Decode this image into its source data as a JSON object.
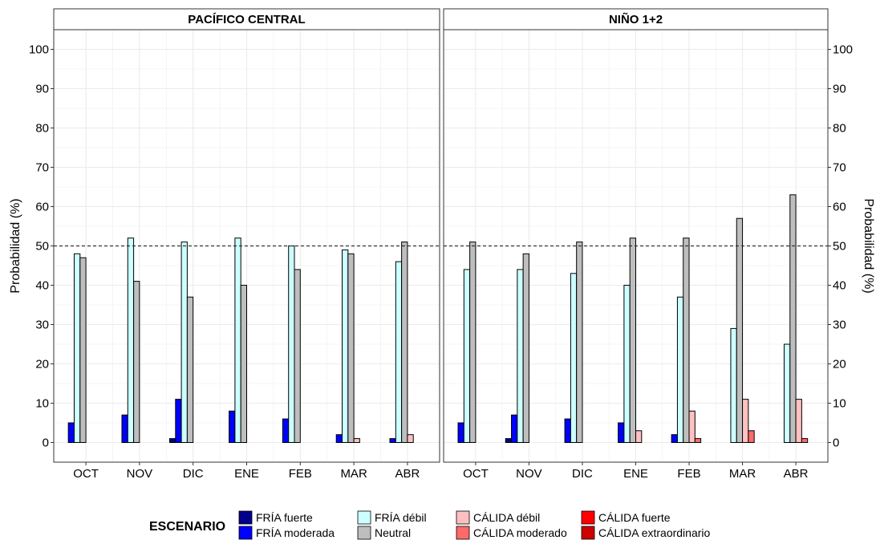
{
  "chart_data": {
    "type": "bar",
    "ylabel": "Probabilidad (%)",
    "ylim": [
      -5,
      105
    ],
    "yticks": [
      0,
      10,
      20,
      30,
      40,
      50,
      60,
      70,
      80,
      90,
      100
    ],
    "reference_line": 50,
    "categories": [
      "OCT",
      "NOV",
      "DIC",
      "ENE",
      "FEB",
      "MAR",
      "ABR"
    ],
    "legend": {
      "title": "ESCENARIO",
      "placement": "bottom"
    },
    "series_meta": [
      {
        "name": "FRÍA fuerte",
        "color": "#00008B"
      },
      {
        "name": "FRÍA moderada",
        "color": "#0000FF"
      },
      {
        "name": "FRÍA débil",
        "color": "#CCFFFF"
      },
      {
        "name": "Neutral",
        "color": "#BEBEBE"
      },
      {
        "name": "CÁLIDA débil",
        "color": "#FFC0C0"
      },
      {
        "name": "CÁLIDA moderado",
        "color": "#FF6A6A"
      },
      {
        "name": "CÁLIDA fuerte",
        "color": "#FF0000"
      },
      {
        "name": "CÁLIDA extraordinario",
        "color": "#CC0000"
      }
    ],
    "panels": [
      {
        "title": "PACÍFICO CENTRAL",
        "series": [
          {
            "name": "FRÍA fuerte",
            "values": [
              0,
              0,
              1,
              0,
              0,
              0,
              0
            ]
          },
          {
            "name": "FRÍA moderada",
            "values": [
              5,
              7,
              11,
              8,
              6,
              2,
              1
            ]
          },
          {
            "name": "FRÍA débil",
            "values": [
              48,
              52,
              51,
              52,
              50,
              49,
              46
            ]
          },
          {
            "name": "Neutral",
            "values": [
              47,
              41,
              37,
              40,
              44,
              48,
              51
            ]
          },
          {
            "name": "CÁLIDA débil",
            "values": [
              0,
              0,
              0,
              0,
              0,
              1,
              2
            ]
          },
          {
            "name": "CÁLIDA moderado",
            "values": [
              0,
              0,
              0,
              0,
              0,
              0,
              0
            ]
          },
          {
            "name": "CÁLIDA fuerte",
            "values": [
              0,
              0,
              0,
              0,
              0,
              0,
              0
            ]
          },
          {
            "name": "CÁLIDA extraordinario",
            "values": [
              0,
              0,
              0,
              0,
              0,
              0,
              0
            ]
          }
        ]
      },
      {
        "title": "NIÑO 1+2",
        "series": [
          {
            "name": "FRÍA fuerte",
            "values": [
              0,
              1,
              0,
              0,
              0,
              0,
              0
            ]
          },
          {
            "name": "FRÍA moderada",
            "values": [
              5,
              7,
              6,
              5,
              2,
              0,
              0
            ]
          },
          {
            "name": "FRÍA débil",
            "values": [
              44,
              44,
              43,
              40,
              37,
              29,
              25
            ]
          },
          {
            "name": "Neutral",
            "values": [
              51,
              48,
              51,
              52,
              52,
              57,
              63
            ]
          },
          {
            "name": "CÁLIDA débil",
            "values": [
              0,
              0,
              0,
              3,
              8,
              11,
              11
            ]
          },
          {
            "name": "CÁLIDA moderado",
            "values": [
              0,
              0,
              0,
              0,
              1,
              3,
              1
            ]
          },
          {
            "name": "CÁLIDA fuerte",
            "values": [
              0,
              0,
              0,
              0,
              0,
              0,
              0
            ]
          },
          {
            "name": "CÁLIDA extraordinario",
            "values": [
              0,
              0,
              0,
              0,
              0,
              0,
              0
            ]
          }
        ]
      }
    ]
  }
}
